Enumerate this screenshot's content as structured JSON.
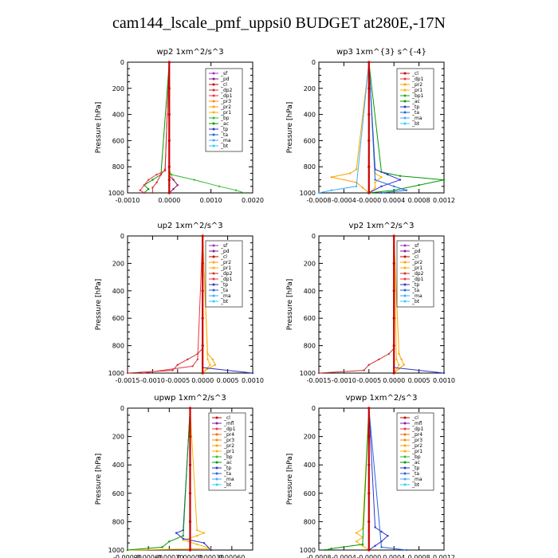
{
  "page_title": "cam144_lscale_pmf_uppsi0  BUDGET at280E,-17N",
  "colors": {
    "sf": "#9933cc",
    "pd": "#8b1a8b",
    "cl": "#cc0000",
    "mfl": "#7722aa",
    "dp1": "#ee3344",
    "dp2": "#cc3333",
    "pr1": "#ffb000",
    "pr2": "#ffa000",
    "pr3": "#ff8800",
    "pr4": "#ff6600",
    "bp": "#33bb33",
    "bp1": "#22aa22",
    "ac": "#009900",
    "tp": "#3333cc",
    "ta": "#2266dd",
    "ma": "#44aaff",
    "bt": "#33ccff"
  },
  "chart_data": [
    {
      "type": "line",
      "title": "wp2   1xm^2/s^3",
      "ylabel": "Pressure  [hPa]",
      "xlim": [
        -0.001,
        0.002
      ],
      "ylim": [
        1000,
        0
      ],
      "grid": false,
      "xticks": [
        -0.001,
        0.0,
        0.001,
        0.002
      ],
      "xticklabels": [
        "-0.0010",
        "0.0000",
        "0.0010",
        "0.0020"
      ],
      "yticks": [
        0,
        200,
        400,
        600,
        800,
        1000
      ],
      "legend": [
        "_sf",
        "_pd",
        "_cl",
        "_dp2",
        "_dp1",
        "_pr3",
        "_pr2",
        "_pr1",
        "_bp",
        "_ac",
        "_tp",
        "_ta",
        "_ma",
        "_bt"
      ],
      "legend_keys": [
        "sf",
        "pd",
        "cl",
        "dp2",
        "dp1",
        "pr3",
        "pr2",
        "pr1",
        "bp",
        "ac",
        "tp",
        "ta",
        "ma",
        "bt"
      ],
      "series": [
        {
          "key": "pr1",
          "p": [
            0,
            820,
            860,
            900,
            940,
            970,
            1000
          ],
          "v": [
            0,
            0,
            5e-05,
            0.0001,
            0.0002,
            0.0001,
            0
          ]
        },
        {
          "key": "bp",
          "p": [
            0,
            840,
            860,
            900,
            950,
            980,
            1000
          ],
          "v": [
            0,
            0,
            5e-05,
            0.0006,
            0.0012,
            0.0016,
            0.0018
          ]
        },
        {
          "key": "ac",
          "p": [
            0,
            860,
            900,
            940,
            970,
            1000
          ],
          "v": [
            0,
            -0.0002,
            -0.0004,
            -0.0006,
            -0.0005,
            -0.0006
          ]
        },
        {
          "key": "dp1",
          "p": [
            0,
            830,
            860,
            900,
            940,
            980,
            1000
          ],
          "v": [
            0,
            -0.0001,
            -0.0003,
            -0.0005,
            -0.0006,
            -0.0007,
            -0.0006
          ]
        },
        {
          "key": "dp2",
          "p": [
            0,
            820,
            860,
            920,
            960,
            1000
          ],
          "v": [
            0,
            -0.0001,
            -0.0002,
            -0.0003,
            -0.0004,
            -0.0004
          ]
        },
        {
          "key": "pd",
          "p": [
            0,
            870,
            900,
            940,
            970,
            1000
          ],
          "v": [
            0,
            0,
            0.0001,
            0.0002,
            0.0001,
            0
          ]
        },
        {
          "key": "tp",
          "p": [
            0,
            940,
            1000
          ],
          "v": [
            0,
            0,
            0
          ]
        },
        {
          "key": "cl",
          "p": [
            0,
            200,
            400,
            600,
            800,
            900,
            1000
          ],
          "v": [
            0,
            0,
            0,
            0,
            0,
            0,
            0
          ]
        }
      ]
    },
    {
      "type": "line",
      "title": "wp3   1xm^{3} s^{-4}",
      "ylabel": "Pressure  [hPa]",
      "xlim": [
        -0.0008,
        0.0012
      ],
      "ylim": [
        1000,
        0
      ],
      "grid": false,
      "xticks": [
        -0.0008,
        -0.0004,
        0.0,
        0.0004,
        0.0008,
        0.0012
      ],
      "xticklabels": [
        "-0.0008",
        "-0.0004",
        "-0.0000",
        "0.0004",
        "0.0008",
        "0.0012"
      ],
      "yticks": [
        0,
        200,
        400,
        600,
        800,
        1000
      ],
      "legend": [
        "_cl",
        "_dp1",
        "_pr2",
        "_pr1",
        "_bp1",
        "_ac",
        "_tp",
        "_ta",
        "_ma",
        "_bt"
      ],
      "legend_keys": [
        "cl",
        "dp1",
        "pr2",
        "pr1",
        "bp1",
        "ac",
        "tp",
        "ta",
        "ma",
        "bt"
      ],
      "series": [
        {
          "key": "pr2",
          "p": [
            0,
            820,
            850,
            880,
            920,
            960,
            1000
          ],
          "v": [
            0,
            -0.0002,
            -0.0003,
            -0.0006,
            -0.0002,
            -0.0001,
            0
          ]
        },
        {
          "key": "pr1",
          "p": [
            0,
            850,
            880,
            920,
            960,
            1000
          ],
          "v": [
            0,
            0.0001,
            0.0002,
            0.0001,
            0.0001,
            0
          ]
        },
        {
          "key": "ac",
          "p": [
            0,
            840,
            870,
            900,
            940,
            980,
            1000
          ],
          "v": [
            0,
            0.0002,
            0.0005,
            0.0012,
            0.0008,
            0.0004,
            0
          ]
        },
        {
          "key": "tp",
          "p": [
            0,
            820,
            860,
            900,
            950,
            1000
          ],
          "v": [
            0,
            0.0001,
            0.0003,
            0.0005,
            0.0002,
            0
          ]
        },
        {
          "key": "ta",
          "p": [
            0,
            900,
            950,
            980,
            1000
          ],
          "v": [
            0,
            0.0001,
            0.0004,
            0.0006,
            0.0002
          ]
        },
        {
          "key": "ma",
          "p": [
            0,
            950,
            980,
            1000
          ],
          "v": [
            0,
            -0.0002,
            -0.0006,
            -0.0008
          ]
        },
        {
          "key": "cl",
          "p": [
            0,
            200,
            400,
            600,
            800,
            1000
          ],
          "v": [
            0,
            0,
            0,
            0,
            0,
            0
          ]
        }
      ]
    },
    {
      "type": "line",
      "title": "up2   1xm^2/s^3",
      "ylabel": "Pressure  [hPa]",
      "xlim": [
        -0.0015,
        0.001
      ],
      "ylim": [
        1000,
        0
      ],
      "grid": false,
      "xticks": [
        -0.0015,
        -0.001,
        -0.0005,
        0.0,
        0.0005,
        0.001
      ],
      "xticklabels": [
        "-0.0015",
        "-0.0010",
        "-0.0005",
        "0.0000",
        "0.0005",
        "0.0010"
      ],
      "yticks": [
        0,
        200,
        400,
        600,
        800,
        1000
      ],
      "legend": [
        "_sf",
        "_pd",
        "_cl",
        "_pr2",
        "_pr1",
        "_dp2",
        "_dp1",
        "_tp",
        "_ta",
        "_ma",
        "_bt"
      ],
      "legend_keys": [
        "sf",
        "pd",
        "cl",
        "pr2",
        "pr1",
        "dp2",
        "dp1",
        "tp",
        "ta",
        "ma",
        "bt"
      ],
      "series": [
        {
          "key": "dp2",
          "p": [
            0,
            820,
            860,
            900,
            940,
            980,
            1000
          ],
          "v": [
            0,
            0,
            -0.0001,
            -0.0003,
            -0.0005,
            -0.0006,
            -0.0015
          ]
        },
        {
          "key": "dp1",
          "p": [
            0,
            900,
            950,
            1000
          ],
          "v": [
            0,
            -0.0001,
            -0.0002,
            -0.0012
          ]
        },
        {
          "key": "pr2",
          "p": [
            0,
            860,
            900,
            940,
            970,
            1000
          ],
          "v": [
            0,
            0.0001,
            0.0002,
            0.00025,
            0.0001,
            0
          ]
        },
        {
          "key": "pr1",
          "p": [
            0,
            900,
            940,
            1000
          ],
          "v": [
            0,
            0.0001,
            0.00015,
            0
          ]
        },
        {
          "key": "tp",
          "p": [
            0,
            960,
            1000
          ],
          "v": [
            0,
            0,
            0.001
          ]
        },
        {
          "key": "cl",
          "p": [
            0,
            200,
            400,
            600,
            800,
            1000
          ],
          "v": [
            0,
            0,
            0,
            0,
            0,
            0
          ]
        }
      ]
    },
    {
      "type": "line",
      "title": "vp2   1xm^2/s^3",
      "ylabel": "Pressure  [hPa]",
      "xlim": [
        -0.0015,
        0.001
      ],
      "ylim": [
        1000,
        0
      ],
      "grid": false,
      "xticks": [
        -0.0015,
        -0.001,
        -0.0005,
        0.0,
        0.0005,
        0.001
      ],
      "xticklabels": [
        "-0.0015",
        "-0.0010",
        "-0.0005",
        "0.0000",
        "0.0005",
        "0.0010"
      ],
      "yticks": [
        0,
        200,
        400,
        600,
        800,
        1000
      ],
      "legend": [
        "_sf",
        "_pd",
        "_cl",
        "_pr2",
        "_pr1",
        "_dp2",
        "_dp1",
        "_tp",
        "_ta",
        "_ma",
        "_bt"
      ],
      "legend_keys": [
        "sf",
        "pd",
        "cl",
        "pr2",
        "pr1",
        "dp2",
        "dp1",
        "tp",
        "ta",
        "ma",
        "bt"
      ],
      "series": [
        {
          "key": "dp2",
          "p": [
            0,
            820,
            860,
            900,
            940,
            980,
            1000
          ],
          "v": [
            0,
            0,
            -0.0001,
            -0.0003,
            -0.0005,
            -0.0006,
            -0.0015
          ]
        },
        {
          "key": "pr2",
          "p": [
            0,
            860,
            900,
            940,
            970,
            1000
          ],
          "v": [
            0,
            0.0001,
            0.00015,
            0.0002,
            0.0001,
            0
          ]
        },
        {
          "key": "pr1",
          "p": [
            0,
            900,
            940,
            1000
          ],
          "v": [
            0,
            5e-05,
            0.0001,
            0
          ]
        },
        {
          "key": "tp",
          "p": [
            0,
            960,
            1000
          ],
          "v": [
            0,
            0,
            0.001
          ]
        },
        {
          "key": "cl",
          "p": [
            0,
            200,
            400,
            600,
            800,
            1000
          ],
          "v": [
            0,
            0,
            0,
            0,
            0,
            0
          ]
        }
      ]
    },
    {
      "type": "line",
      "title": "upwp   1xm^2/s^3",
      "ylabel": "Pressure  [hPa]",
      "xlim": [
        -0.0009,
        0.0009
      ],
      "ylim": [
        1000,
        0
      ],
      "grid": false,
      "xticks": [
        -0.0009,
        -0.0006,
        -0.0003,
        0.0,
        0.0003,
        0.0006
      ],
      "xticklabels": [
        "-0.00090",
        "-0.00060",
        "-0.00030",
        "0.00000",
        "0.00030",
        "0.00060"
      ],
      "yticks": [
        0,
        200,
        400,
        600,
        800,
        1000
      ],
      "legend": [
        "_cl",
        "_mfl",
        "_dp1",
        "_pr4",
        "_pr3",
        "_pr2",
        "_pr1",
        "_bp",
        "_ac",
        "_tp",
        "_ta",
        "_ma",
        "_bt"
      ],
      "legend_keys": [
        "cl",
        "mfl",
        "dp1",
        "pr4",
        "pr3",
        "pr2",
        "pr1",
        "bp",
        "ac",
        "tp",
        "ta",
        "ma",
        "bt"
      ],
      "series": [
        {
          "key": "pr1",
          "p": [
            0,
            860,
            880,
            900,
            930,
            960,
            990,
            1000
          ],
          "v": [
            0,
            0.0001,
            0.0002,
            0.0001,
            -0.0001,
            0.0001,
            0.0003,
            -0.0009
          ]
        },
        {
          "key": "tp",
          "p": [
            0,
            860,
            880,
            920,
            950,
            1000
          ],
          "v": [
            0,
            -0.0001,
            -0.0002,
            -0.0001,
            0.0002,
            0.0003
          ]
        },
        {
          "key": "ac",
          "p": [
            0,
            900,
            940,
            980,
            1000
          ],
          "v": [
            0,
            -0.0001,
            -0.0003,
            -0.0004,
            -0.0009
          ]
        },
        {
          "key": "cl",
          "p": [
            0,
            200,
            400,
            600,
            800,
            1000
          ],
          "v": [
            0,
            0,
            0,
            0,
            0,
            0
          ]
        }
      ]
    },
    {
      "type": "line",
      "title": "vpwp   1xm^2/s^3",
      "ylabel": "Pressure  [hPa]",
      "xlim": [
        -0.0008,
        0.0012
      ],
      "ylim": [
        1000,
        0
      ],
      "grid": false,
      "xticks": [
        -0.0008,
        -0.0004,
        0.0,
        0.0004,
        0.0008,
        0.0012
      ],
      "xticklabels": [
        "-0.0008",
        "-0.0004",
        "-0.0000",
        "0.0004",
        "0.0008",
        "0.0012"
      ],
      "yticks": [
        0,
        200,
        400,
        600,
        800,
        1000
      ],
      "legend": [
        "_cl",
        "_mfl",
        "_dp1",
        "_pr4",
        "_pr3",
        "_pr2",
        "_pr1",
        "_bp",
        "_ac",
        "_tp",
        "_ta",
        "_ma",
        "_bt"
      ],
      "legend_keys": [
        "cl",
        "mfl",
        "dp1",
        "pr4",
        "pr3",
        "pr2",
        "pr1",
        "bp",
        "ac",
        "tp",
        "ta",
        "ma",
        "bt"
      ],
      "series": [
        {
          "key": "pr1",
          "p": [
            0,
            850,
            880,
            910,
            940,
            970,
            1000
          ],
          "v": [
            0,
            -0.0001,
            -0.0002,
            -0.0001,
            -0.0002,
            -0.0001,
            0
          ]
        },
        {
          "key": "tp",
          "p": [
            0,
            840,
            870,
            900,
            940,
            970,
            1000
          ],
          "v": [
            0,
            0.0001,
            0.0002,
            0.0003,
            0.0002,
            0.0001,
            0
          ]
        },
        {
          "key": "ac",
          "p": [
            0,
            960,
            990,
            1000
          ],
          "v": [
            0,
            -0.0001,
            -0.0006,
            -0.0007
          ]
        },
        {
          "key": "ta",
          "p": [
            0,
            980,
            1000
          ],
          "v": [
            0,
            0.0002,
            0.0006
          ]
        },
        {
          "key": "cl",
          "p": [
            0,
            200,
            400,
            600,
            800,
            1000
          ],
          "v": [
            0,
            0,
            0,
            0,
            0,
            0
          ]
        }
      ]
    }
  ]
}
